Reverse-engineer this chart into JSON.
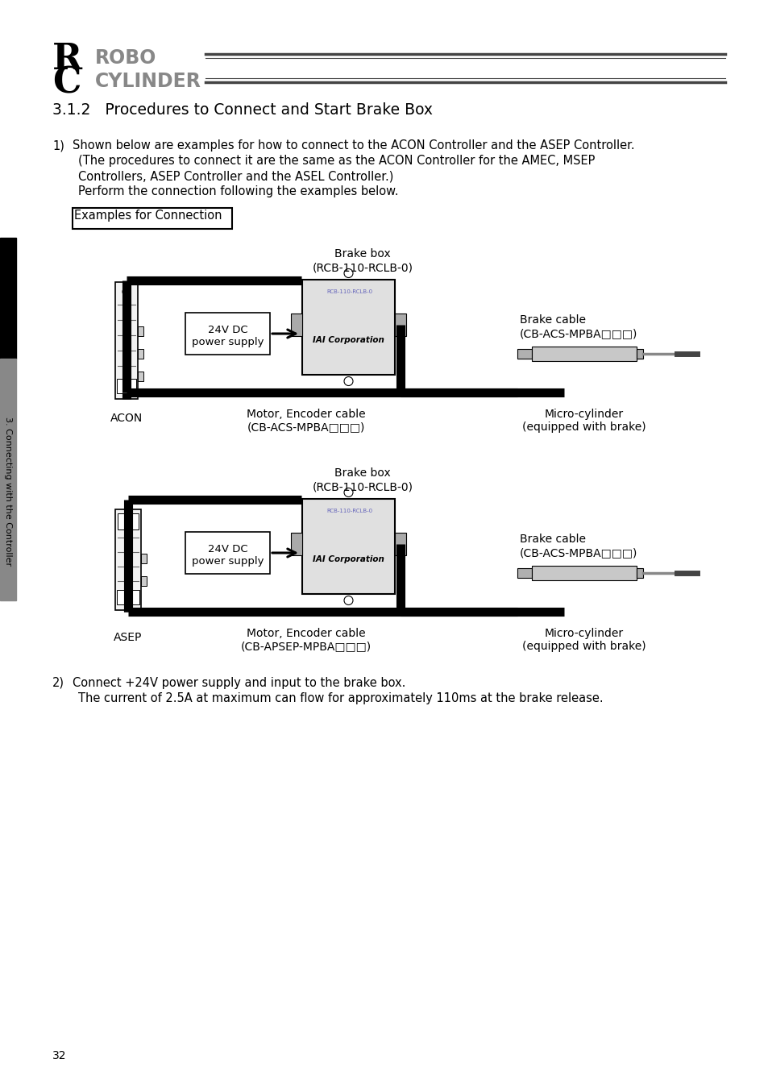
{
  "bg_color": "#ffffff",
  "header_r_text": "R",
  "header_c_text": "C",
  "header_title_line1": "ROBO",
  "header_title_line2": "CYLINDER",
  "section_title": "3.1.2   Procedures to Connect and Start Brake Box",
  "item1_num": "1)",
  "item1_text_line1": "Shown below are examples for how to connect to the ACON Controller and the ASEP Controller.",
  "item1_text_line2": "(The procedures to connect it are the same as the ACON Controller for the AMEC, MSEP",
  "item1_text_line3": "Controllers, ASEP Controller and the ASEL Controller.)",
  "item1_text_line4": "Perform the connection following the examples below.",
  "examples_label": "Examples for Connection",
  "brake_box_label1": "Brake box",
  "brake_box_label2": "(RCB-110-RCLB-0)",
  "power_label1": "24V DC",
  "power_label2": "power supply",
  "brake_cable_label1": "Brake cable",
  "brake_cable_label2_acon": "(CB-ACS-MPBA□□□)",
  "motor_cable_label1": "Motor, Encoder cable",
  "motor_cable_label2_acon": "(CB-ACS-MPBA□□□)",
  "motor_cable_label2_asep": "(CB-APSEP-MPBA□□□)",
  "micro_cyl_label1": "Micro-cylinder",
  "micro_cyl_label2": "(equipped with brake)",
  "acon_label": "ACON",
  "asep_label": "ASEP",
  "iai_label": "IAI Corporation",
  "item2_num": "2)",
  "item2_text_line1": "Connect +24V power supply and input to the brake box.",
  "item2_text_line2": "The current of 2.5A at maximum can flow for approximately 110ms at the brake release.",
  "page_number": "32",
  "sidebar_text": "3. Connecting with the Controller"
}
